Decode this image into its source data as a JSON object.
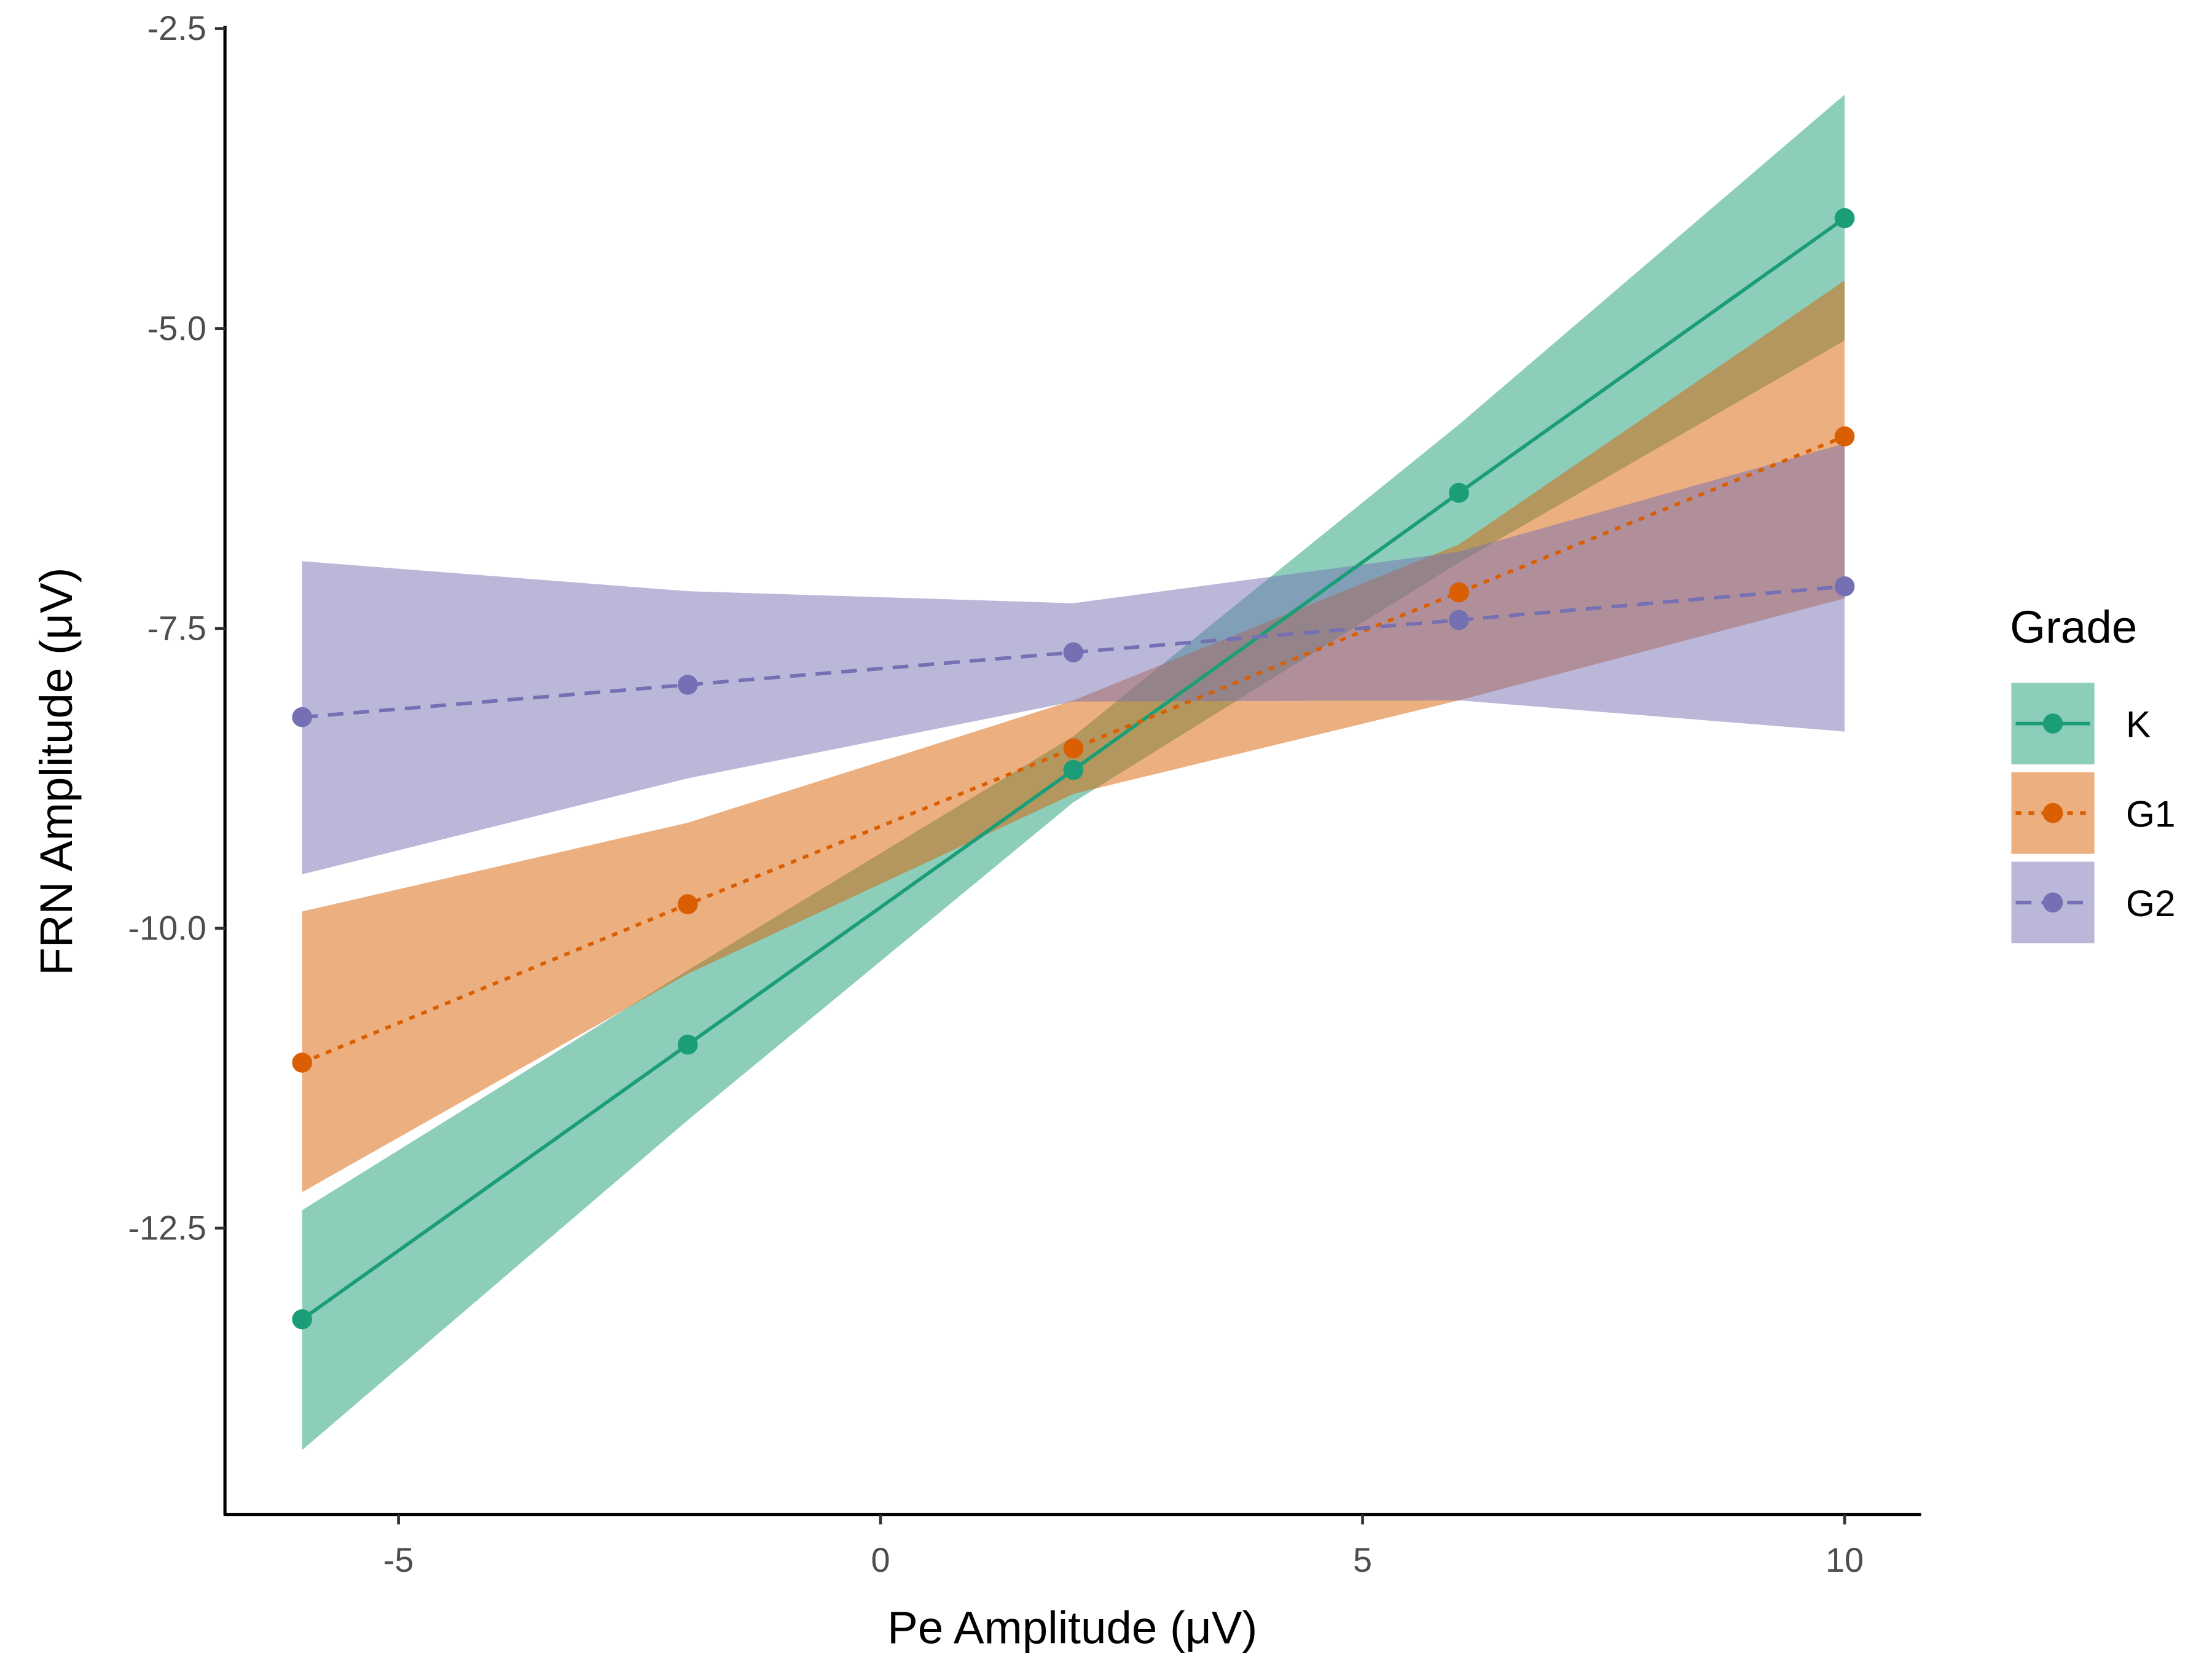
{
  "chart_data": {
    "type": "line",
    "title": "",
    "xlabel": "Pe Amplitude (μV)",
    "ylabel": "FRN Amplitude (μV)",
    "xlim": [
      -6.8,
      10.8
    ],
    "ylim": [
      -14.9,
      -2.5
    ],
    "xticks": [
      -5,
      0,
      5,
      10
    ],
    "xtick_labels": [
      "-5",
      "0",
      "5",
      "10"
    ],
    "yticks": [
      -2.5,
      -5.0,
      -7.5,
      -10.0,
      -12.5
    ],
    "ytick_labels": [
      "-2.5",
      "-5.0",
      "-7.5",
      "-10.0",
      "-12.5"
    ],
    "grid": false,
    "legend": {
      "title": "Grade",
      "placement": "right"
    },
    "x": [
      -6,
      -2,
      2,
      6,
      10
    ],
    "series": [
      {
        "name": "K",
        "color": "#1b9e77",
        "linetype": "solid",
        "values": [
          -13.26,
          -10.97,
          -8.68,
          -6.37,
          -4.08
        ],
        "lower": [
          -14.35,
          -11.6,
          -8.95,
          -6.95,
          -5.1
        ],
        "upper": [
          -12.35,
          -10.35,
          -8.4,
          -5.8,
          -3.05
        ]
      },
      {
        "name": "G1",
        "color": "#d95f02",
        "linetype": "dotted",
        "values": [
          -11.12,
          -9.8,
          -8.5,
          -7.2,
          -5.9
        ],
        "lower": [
          -12.2,
          -10.38,
          -8.88,
          -8.1,
          -7.25
        ],
        "upper": [
          -9.86,
          -9.12,
          -8.1,
          -6.8,
          -4.6
        ]
      },
      {
        "name": "G2",
        "color": "#7570b3",
        "linetype": "dashed",
        "values": [
          -8.24,
          -7.97,
          -7.7,
          -7.43,
          -7.15
        ],
        "lower": [
          -9.55,
          -8.75,
          -8.11,
          -8.1,
          -8.36
        ],
        "upper": [
          -6.94,
          -7.19,
          -7.29,
          -6.86,
          -5.96
        ]
      }
    ]
  }
}
